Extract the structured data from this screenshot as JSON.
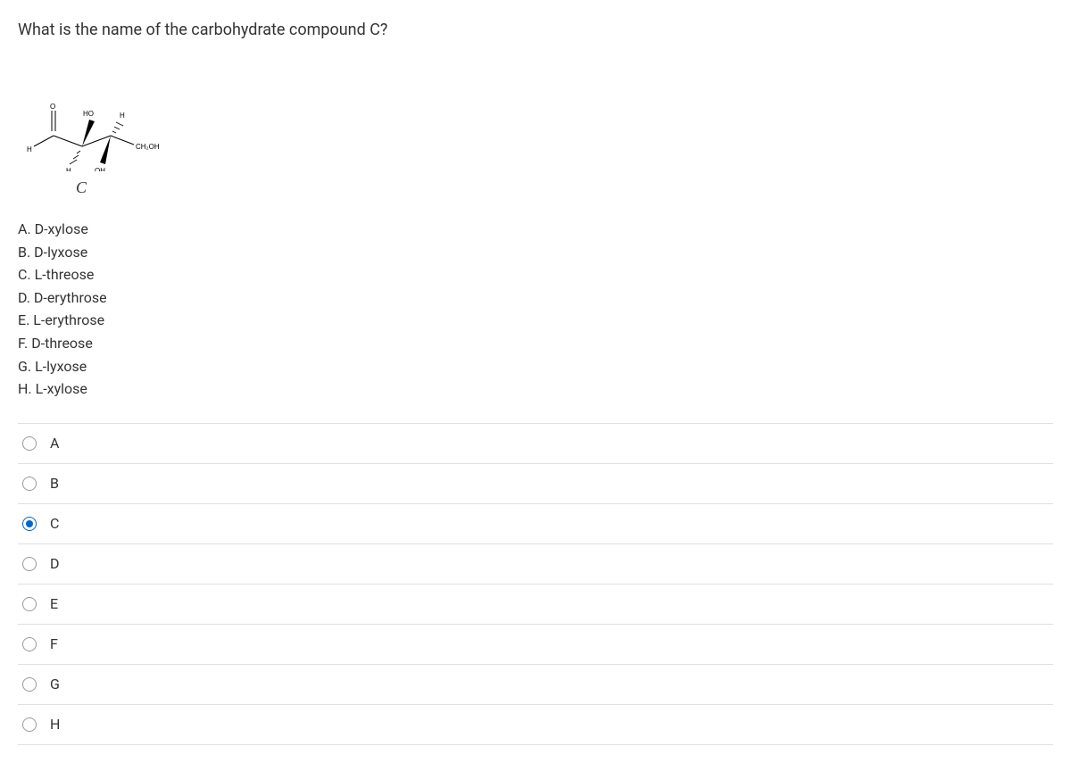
{
  "question": {
    "text": "What is the name of the carbohydrate compound C?",
    "molecule_label": "C",
    "molecule": {
      "labels": {
        "o": "O",
        "ho": "HO",
        "h_top": "H",
        "h_left": "H",
        "h_bottom": "H",
        "oh_bottom": "OH",
        "ch2oh": "CH₂OH"
      }
    }
  },
  "answer_key": [
    {
      "letter": "A",
      "text": "D-xylose"
    },
    {
      "letter": "B",
      "text": "D-lyxose"
    },
    {
      "letter": "C",
      "text": "L-threose"
    },
    {
      "letter": "D",
      "text": "D-erythrose"
    },
    {
      "letter": "E",
      "text": "L-erythrose"
    },
    {
      "letter": "F",
      "text": "D-threose"
    },
    {
      "letter": "G",
      "text": "L-lyxose"
    },
    {
      "letter": "H",
      "text": "L-xylose"
    }
  ],
  "options": [
    {
      "label": "A",
      "selected": false
    },
    {
      "label": "B",
      "selected": false
    },
    {
      "label": "C",
      "selected": true
    },
    {
      "label": "D",
      "selected": false
    },
    {
      "label": "E",
      "selected": false
    },
    {
      "label": "F",
      "selected": false
    },
    {
      "label": "G",
      "selected": false
    },
    {
      "label": "H",
      "selected": false
    }
  ],
  "colors": {
    "text": "#333333",
    "border": "#e0e0e0",
    "radio_border": "#999999",
    "radio_selected": "#0066cc",
    "background": "#ffffff"
  }
}
